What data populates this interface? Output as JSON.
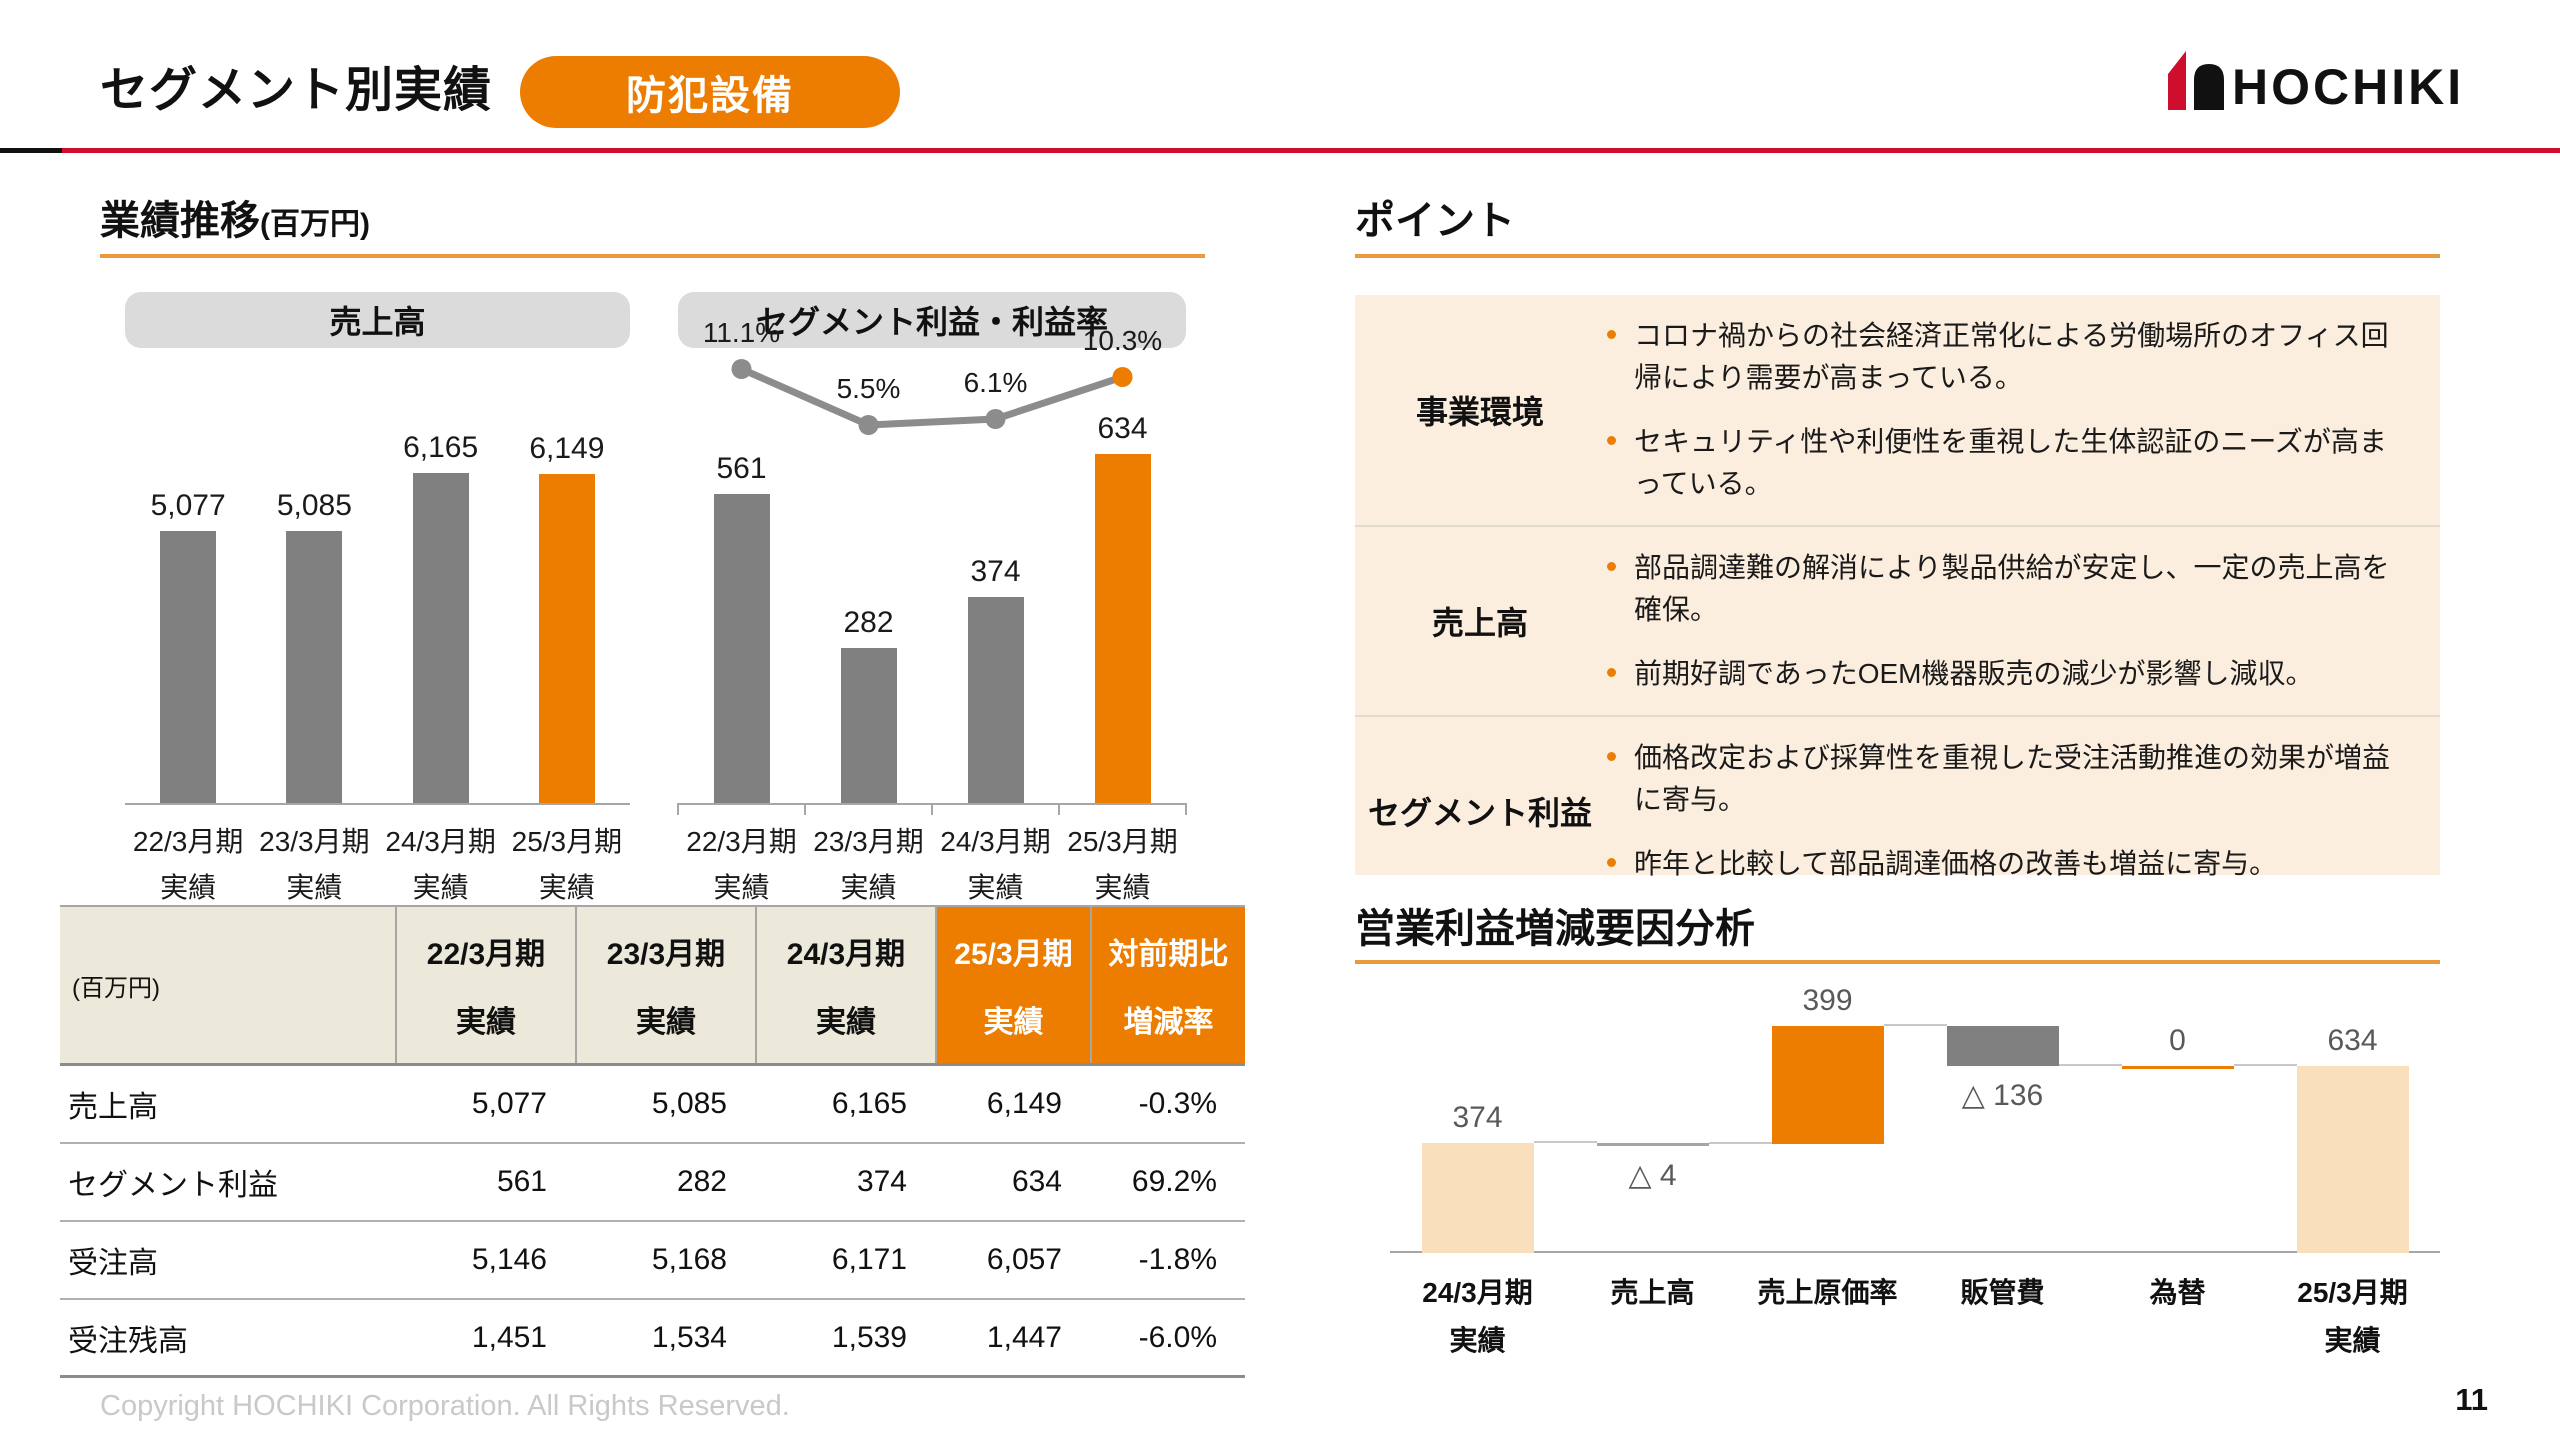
{
  "header": {
    "title": "セグメント別実績",
    "badge": "防犯設備",
    "logo_text": "HOCHIKI"
  },
  "left_panel": {
    "section_title": "業績推移",
    "section_unit": "(百万円)"
  },
  "chart_data": [
    {
      "id": "sales",
      "type": "bar",
      "title": "売上高",
      "categories": [
        "22/3月期\n実績",
        "23/3月期\n実績",
        "24/3月期\n実績",
        "25/3月期\n実績"
      ],
      "values": [
        5077,
        5085,
        6165,
        6149
      ],
      "value_labels": [
        "5,077",
        "5,085",
        "6,165",
        "6,149"
      ],
      "bar_colors": [
        "#808080",
        "#808080",
        "#808080",
        "#ED7D00"
      ],
      "ylim": [
        0,
        8500
      ],
      "grid": false,
      "legend": "none"
    },
    {
      "id": "profit",
      "type": "bar+line",
      "title": "セグメント利益・利益率",
      "categories": [
        "22/3月期\n実績",
        "23/3月期\n実績",
        "24/3月期\n実績",
        "25/3月期\n実績"
      ],
      "series": [
        {
          "name": "セグメント利益",
          "type": "bar",
          "values": [
            561,
            282,
            374,
            634
          ],
          "value_labels": [
            "561",
            "282",
            "374",
            "634"
          ],
          "colors": [
            "#808080",
            "#808080",
            "#808080",
            "#ED7D00"
          ]
        },
        {
          "name": "利益率",
          "type": "line",
          "values_pct": [
            11.1,
            5.5,
            6.1,
            10.3
          ],
          "value_labels": [
            "11.1%",
            "5.5%",
            "6.1%",
            "10.3%"
          ],
          "line_color": "#8C8C8C",
          "point_colors": [
            "#8C8C8C",
            "#8C8C8C",
            "#8C8C8C",
            "#ED7D00"
          ]
        }
      ],
      "ylim": [
        0,
        800
      ],
      "grid": false,
      "legend": "none"
    },
    {
      "id": "op-profit-bridge",
      "type": "waterfall",
      "title": "営業利益増減要因分析",
      "categories": [
        "24/3月期\n実績",
        "売上高",
        "売上原価率",
        "販管費",
        "為替",
        "25/3月期\n実績"
      ],
      "measures": [
        "absolute",
        "relative",
        "relative",
        "relative",
        "relative",
        "total"
      ],
      "values": [
        374,
        -4,
        399,
        -136,
        0,
        634
      ],
      "value_labels": [
        "374",
        "△ 4",
        "399",
        "△ 136",
        "0",
        "634"
      ],
      "colors": {
        "start_end": "#FADFBD",
        "increase": "#ED7D00",
        "decrease": "#808080",
        "zero": "#ED7D00"
      },
      "grid": false,
      "legend": "none"
    }
  ],
  "table": {
    "unit_label": "(百万円)",
    "col_headers": [
      "22/3月期\n実績",
      "23/3月期\n実績",
      "24/3月期\n実績",
      "25/3月期\n実績",
      "対前期比\n増減率"
    ],
    "highlight_cols": [
      3,
      4
    ],
    "rows": [
      {
        "label": "売上高",
        "values": [
          "5,077",
          "5,085",
          "6,165",
          "6,149",
          "-0.3%"
        ]
      },
      {
        "label": "セグメント利益",
        "values": [
          "561",
          "282",
          "374",
          "634",
          "69.2%"
        ]
      },
      {
        "label": "受注高",
        "values": [
          "5,146",
          "5,168",
          "6,171",
          "6,057",
          "-1.8%"
        ]
      },
      {
        "label": "受注残高",
        "values": [
          "1,451",
          "1,534",
          "1,539",
          "1,447",
          "-6.0%"
        ]
      }
    ]
  },
  "points": {
    "title": "ポイント",
    "rows": [
      {
        "label": "事業環境",
        "bullets": [
          "コロナ禍からの社会経済正常化による労働場所のオフィス回帰により需要が高まっている。",
          "セキュリティ性や利便性を重視した生体認証のニーズが高まっている。"
        ]
      },
      {
        "label": "売上高",
        "bullets": [
          "部品調達難の解消により製品供給が安定し、一定の売上高を確保。",
          "前期好調であったOEM機器販売の減少が影響し減収。"
        ]
      },
      {
        "label": "セグメント利益",
        "bullets": [
          "価格改定および採算性を重視した受注活動推進の効果が増益に寄与。",
          "昨年と比較して部品調達価格の改善も増益に寄与。"
        ]
      }
    ]
  },
  "footer": {
    "copyright": "Copyright HOCHIKI Corporation. All Rights Reserved.",
    "page_number": "11"
  },
  "colors": {
    "accent_orange": "#ED7D00",
    "brand_red": "#CE0E2D",
    "bar_gray": "#808080",
    "peach_bar": "#FADFBD",
    "panel_peach": "#FCEEDF",
    "header_beige": "#ECE9DA"
  }
}
